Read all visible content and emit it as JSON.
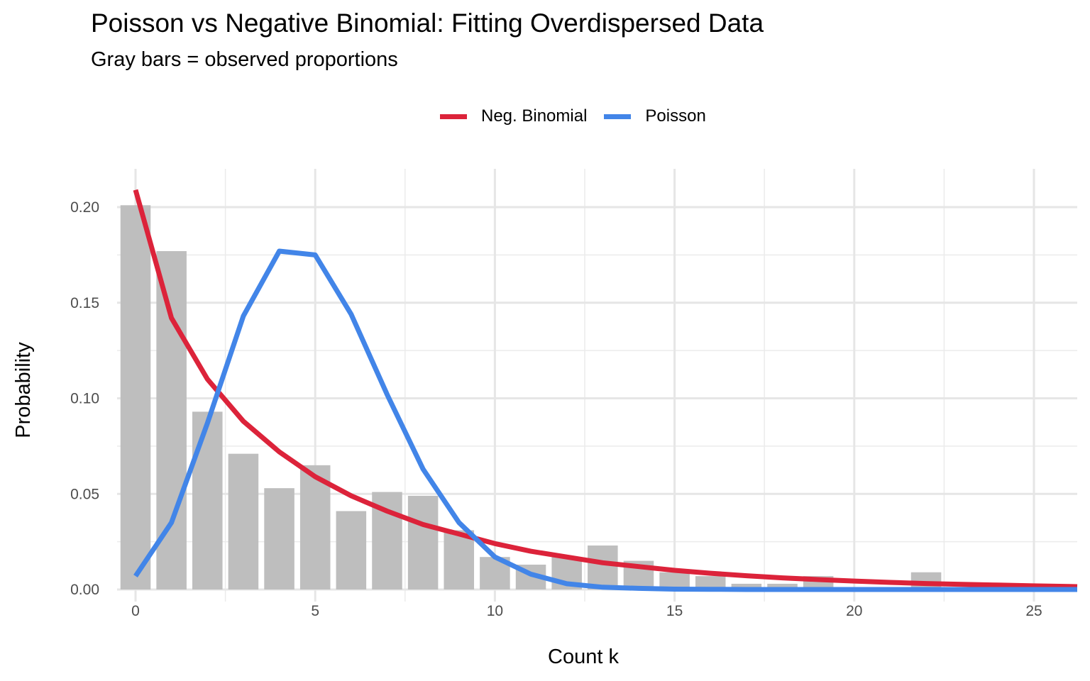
{
  "chart_data": {
    "type": "bar",
    "title": "Poisson vs Negative Binomial: Fitting Overdispersed Data",
    "subtitle": "Gray bars = observed proportions",
    "xlabel": "Count k",
    "ylabel": "Probability",
    "xlim": [
      -0.5,
      26.3
    ],
    "ylim": [
      0,
      0.21
    ],
    "grid": true,
    "legend_position": "top",
    "x_ticks": [
      0,
      5,
      10,
      15,
      20,
      25
    ],
    "x_tick_labels": [
      "0",
      "5",
      "10",
      "15",
      "20",
      "25"
    ],
    "y_ticks": [
      0,
      0.05,
      0.1,
      0.15,
      0.2
    ],
    "y_tick_labels": [
      "0.00",
      "0.05",
      "0.10",
      "0.15",
      "0.20"
    ],
    "bars": {
      "name": "Observed",
      "color": "#bebebe",
      "x": [
        0,
        1,
        2,
        3,
        4,
        5,
        6,
        7,
        8,
        9,
        10,
        11,
        12,
        13,
        14,
        15,
        16,
        17,
        18,
        19,
        20,
        21,
        22,
        23,
        24,
        25,
        26
      ],
      "values": [
        0.201,
        0.177,
        0.093,
        0.071,
        0.053,
        0.065,
        0.041,
        0.051,
        0.049,
        0.031,
        0.017,
        0.013,
        0.017,
        0.023,
        0.015,
        0.009,
        0.007,
        0.003,
        0.003,
        0.007,
        0.0,
        0.0,
        0.009,
        0.0,
        0.0,
        0.0,
        0.0
      ]
    },
    "series": [
      {
        "name": "Neg. Binomial",
        "type": "line",
        "color": "#dc233a",
        "x": [
          0,
          1,
          2,
          3,
          4,
          5,
          6,
          7,
          8,
          9,
          10,
          11,
          12,
          13,
          14,
          15,
          16,
          17,
          18,
          19,
          20,
          21,
          22,
          23,
          24,
          25,
          26,
          26.3
        ],
        "values": [
          0.209,
          0.142,
          0.11,
          0.088,
          0.072,
          0.059,
          0.049,
          0.041,
          0.034,
          0.029,
          0.024,
          0.02,
          0.017,
          0.014,
          0.012,
          0.01,
          0.0085,
          0.0072,
          0.0061,
          0.0052,
          0.0044,
          0.0037,
          0.0031,
          0.0027,
          0.0023,
          0.0019,
          0.0016,
          0.0015
        ]
      },
      {
        "name": "Poisson",
        "type": "line",
        "color": "#4285e8",
        "x": [
          0,
          1,
          2,
          3,
          4,
          5,
          6,
          7,
          8,
          9,
          10,
          11,
          12,
          13,
          14,
          15,
          16,
          17,
          18,
          19,
          20,
          21,
          22,
          23,
          24,
          25,
          26,
          26.3
        ],
        "values": [
          0.007,
          0.035,
          0.087,
          0.143,
          0.177,
          0.175,
          0.144,
          0.102,
          0.063,
          0.035,
          0.017,
          0.008,
          0.003,
          0.0012,
          0.0006,
          0.0002,
          0.0001,
          0,
          0,
          0,
          0,
          0,
          0,
          0,
          0,
          0,
          0,
          0
        ]
      }
    ]
  }
}
